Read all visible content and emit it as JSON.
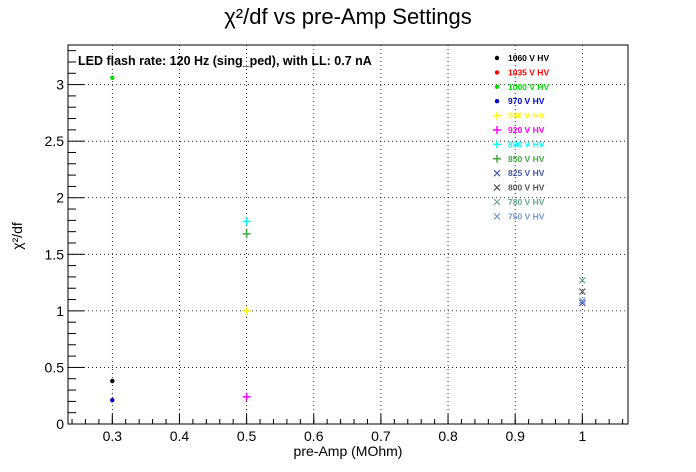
{
  "chart_data": {
    "type": "scatter",
    "title": "χ²/df vs pre-Amp Settings",
    "xlabel": "pre-Amp (MOhm)",
    "ylabel": "χ²/df",
    "annotation": "LED flash rate: 120 Hz  (sing_ped), with LL: 0.7 nA",
    "xlim": [
      0.234,
      1.068
    ],
    "ylim": [
      0,
      3.35
    ],
    "x_ticks": [
      0.3,
      0.4,
      0.5,
      0.6,
      0.7,
      0.8,
      0.9,
      1.0
    ],
    "x_tick_labels": [
      "0.3",
      "0.4",
      "0.5",
      "0.6",
      "0.7",
      "0.8",
      "0.9",
      "1"
    ],
    "y_ticks": [
      0,
      0.5,
      1,
      1.5,
      2,
      2.5,
      3
    ],
    "y_tick_labels": [
      "0",
      "0.5",
      "1",
      "1.5",
      "2",
      "2.5",
      "3"
    ],
    "grid": true,
    "legend_position": "top-right",
    "series": [
      {
        "name": "1060 V HV",
        "color": "#000000",
        "marker": "dot",
        "points": [
          {
            "x": 0.3,
            "y": 0.38
          }
        ]
      },
      {
        "name": "1035 V HV",
        "color": "#ff0000",
        "marker": "dot",
        "points": []
      },
      {
        "name": "1000 V HV",
        "color": "#00dd00",
        "marker": "dot",
        "points": [
          {
            "x": 0.3,
            "y": 3.06
          }
        ]
      },
      {
        "name": "970 V HV",
        "color": "#0000cc",
        "marker": "dot",
        "points": [
          {
            "x": 0.3,
            "y": 0.21
          }
        ]
      },
      {
        "name": "960 V HV",
        "color": "#ffff00",
        "marker": "plus",
        "points": [
          {
            "x": 0.5,
            "y": 1.0
          }
        ]
      },
      {
        "name": "920 V HV",
        "color": "#ff00ff",
        "marker": "plus",
        "points": [
          {
            "x": 0.5,
            "y": 0.24
          }
        ]
      },
      {
        "name": "890 V HV",
        "color": "#00ffff",
        "marker": "plus",
        "points": [
          {
            "x": 0.5,
            "y": 1.79
          }
        ]
      },
      {
        "name": "850 V HV",
        "color": "#44aa44",
        "marker": "plus",
        "points": [
          {
            "x": 0.5,
            "y": 1.68
          }
        ]
      },
      {
        "name": "825 V HV",
        "color": "#4455aa",
        "marker": "cross",
        "points": [
          {
            "x": 1.0,
            "y": 1.07
          }
        ]
      },
      {
        "name": "800 V HV",
        "color": "#555555",
        "marker": "cross",
        "points": [
          {
            "x": 1.0,
            "y": 1.17
          }
        ]
      },
      {
        "name": "780 V HV",
        "color": "#66aa88",
        "marker": "cross",
        "points": [
          {
            "x": 1.0,
            "y": 1.27
          }
        ]
      },
      {
        "name": "750 V HV",
        "color": "#7799cc",
        "marker": "cross",
        "points": [
          {
            "x": 1.0,
            "y": 1.09
          }
        ]
      }
    ]
  }
}
